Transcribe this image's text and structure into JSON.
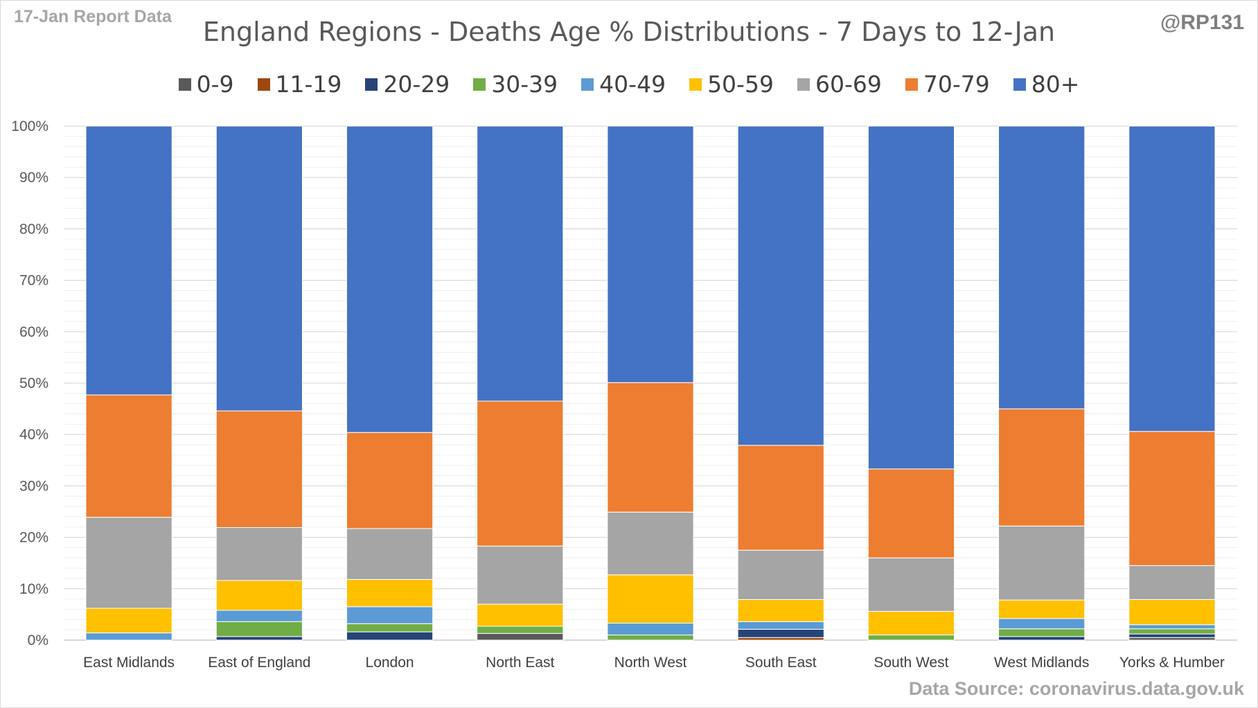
{
  "corner_left": "17-Jan Report Data",
  "corner_right": "@RP131",
  "source": "Data Source: coronavirus.data.gov.uk",
  "chart_data": {
    "type": "bar",
    "stacked": true,
    "title": "England Regions - Deaths Age % Distributions - 7 Days to 12-Jan",
    "xlabel": "",
    "ylabel": "",
    "ylim": [
      0,
      100
    ],
    "y_ticks": [
      "0%",
      "10%",
      "20%",
      "30%",
      "40%",
      "50%",
      "60%",
      "70%",
      "80%",
      "90%",
      "100%"
    ],
    "grid": true,
    "legend_position": "top",
    "categories": [
      "East Midlands",
      "East of England",
      "London",
      "North East",
      "North West",
      "South East",
      "South West",
      "West Midlands",
      "Yorks & Humber"
    ],
    "series": [
      {
        "name": "0-9",
        "color": "#595959",
        "values": [
          0,
          0,
          0,
          1.3,
          0,
          0,
          0,
          0,
          0.5
        ]
      },
      {
        "name": "11-19",
        "color": "#9e480e",
        "values": [
          0,
          0,
          0,
          0,
          0,
          0.5,
          0,
          0,
          0
        ]
      },
      {
        "name": "20-29",
        "color": "#264478",
        "values": [
          0,
          0.7,
          1.6,
          0,
          0,
          1.6,
          0,
          0.7,
          0.7
        ]
      },
      {
        "name": "30-39",
        "color": "#70ad47",
        "values": [
          0,
          2.9,
          1.6,
          1.4,
          1.0,
          0,
          1.0,
          1.5,
          1.0
        ]
      },
      {
        "name": "40-49",
        "color": "#5b9bd5",
        "values": [
          1.4,
          2.2,
          3.3,
          0,
          2.3,
          1.5,
          0,
          2.0,
          0.8
        ]
      },
      {
        "name": "50-59",
        "color": "#ffc000",
        "values": [
          4.8,
          5.8,
          5.3,
          4.3,
          9.4,
          4.3,
          4.6,
          3.6,
          4.9
        ]
      },
      {
        "name": "60-69",
        "color": "#a5a5a5",
        "values": [
          17.7,
          10.3,
          9.9,
          11.3,
          12.2,
          9.6,
          10.4,
          14.4,
          6.6
        ]
      },
      {
        "name": "70-79",
        "color": "#ed7d31",
        "values": [
          23.8,
          22.7,
          18.7,
          28.2,
          25.2,
          20.4,
          17.3,
          22.8,
          26.1
        ]
      },
      {
        "name": "80+",
        "color": "#4472c4",
        "values": [
          52.3,
          55.4,
          59.6,
          53.5,
          49.9,
          62.1,
          66.7,
          55.0,
          59.4
        ]
      }
    ]
  }
}
